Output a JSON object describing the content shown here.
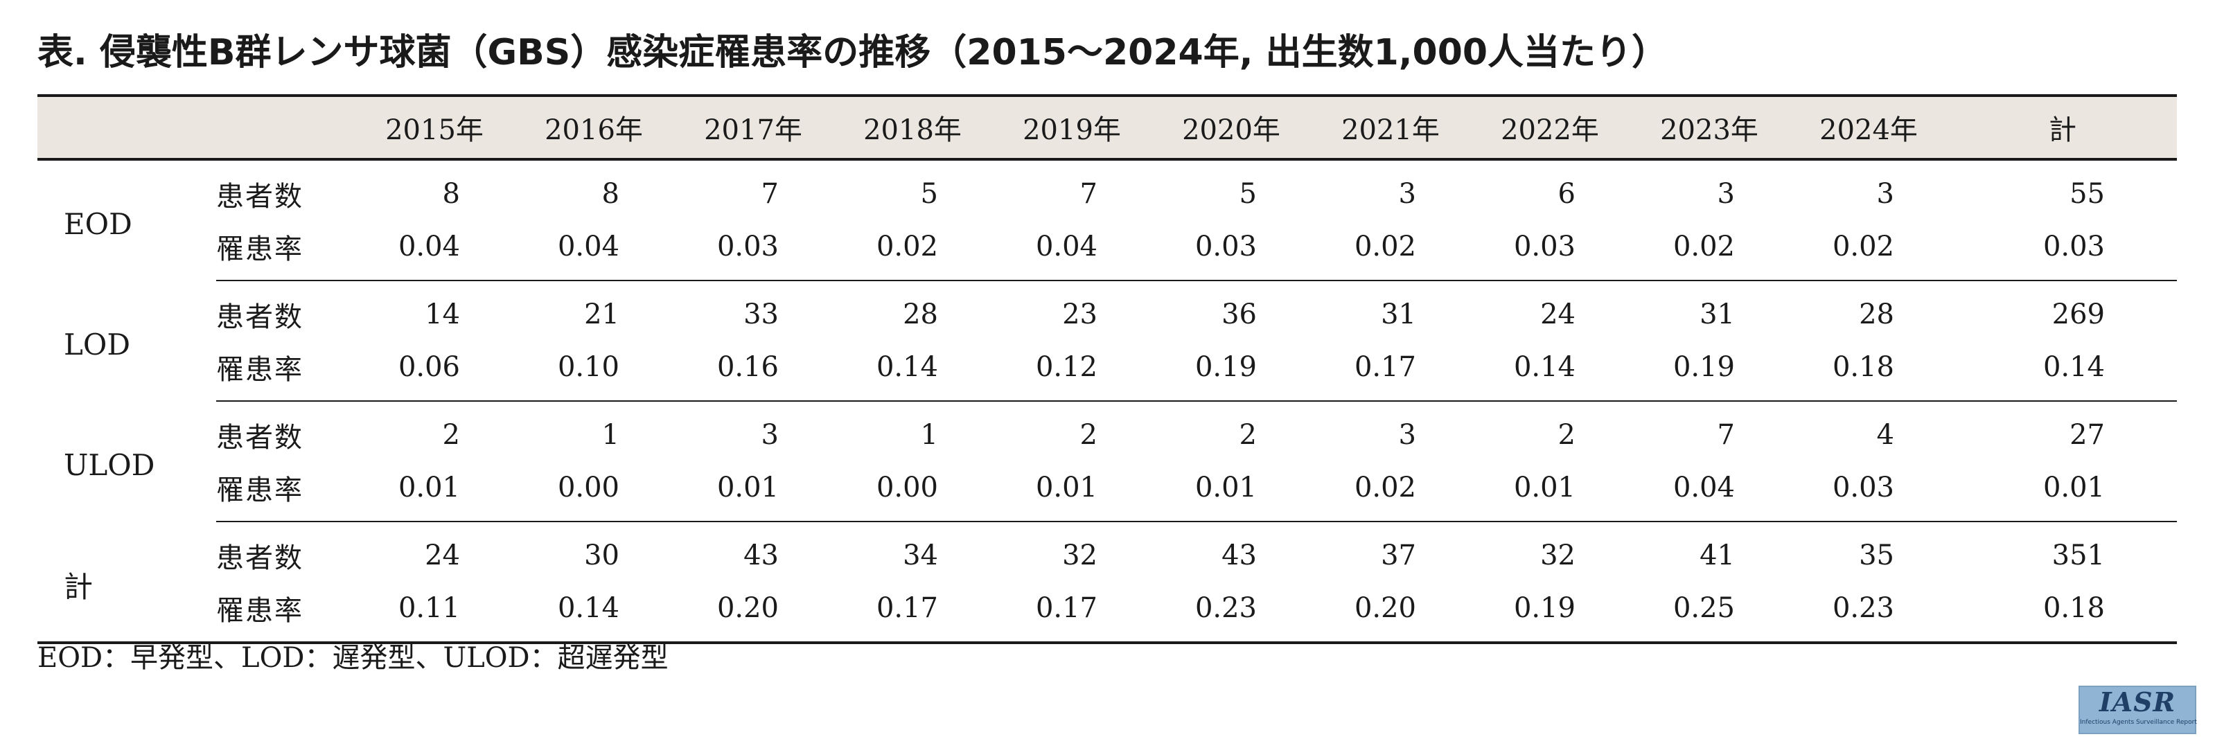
{
  "title": "表. 侵襲性B群レンサ球菌（GBS）感染症罹患率の推移（2015〜2024年, 出生数1,000人当たり）",
  "table": {
    "columns": [
      "2015年",
      "2016年",
      "2017年",
      "2018年",
      "2019年",
      "2020年",
      "2021年",
      "2022年",
      "2023年",
      "2024年",
      "計"
    ],
    "groups": [
      {
        "label": "EOD",
        "rows": [
          {
            "metric": "患者数",
            "values": [
              "8",
              "8",
              "7",
              "5",
              "7",
              "5",
              "3",
              "6",
              "3",
              "3",
              "55"
            ]
          },
          {
            "metric": "罹患率",
            "values": [
              "0.04",
              "0.04",
              "0.03",
              "0.02",
              "0.04",
              "0.03",
              "0.02",
              "0.03",
              "0.02",
              "0.02",
              "0.03"
            ]
          }
        ]
      },
      {
        "label": "LOD",
        "rows": [
          {
            "metric": "患者数",
            "values": [
              "14",
              "21",
              "33",
              "28",
              "23",
              "36",
              "31",
              "24",
              "31",
              "28",
              "269"
            ]
          },
          {
            "metric": "罹患率",
            "values": [
              "0.06",
              "0.10",
              "0.16",
              "0.14",
              "0.12",
              "0.19",
              "0.17",
              "0.14",
              "0.19",
              "0.18",
              "0.14"
            ]
          }
        ]
      },
      {
        "label": "ULOD",
        "rows": [
          {
            "metric": "患者数",
            "values": [
              "2",
              "1",
              "3",
              "1",
              "2",
              "2",
              "3",
              "2",
              "7",
              "4",
              "27"
            ]
          },
          {
            "metric": "罹患率",
            "values": [
              "0.01",
              "0.00",
              "0.01",
              "0.00",
              "0.01",
              "0.01",
              "0.02",
              "0.01",
              "0.04",
              "0.03",
              "0.01"
            ]
          }
        ]
      },
      {
        "label": "計",
        "rows": [
          {
            "metric": "患者数",
            "values": [
              "24",
              "30",
              "43",
              "34",
              "32",
              "43",
              "37",
              "32",
              "41",
              "35",
              "351"
            ]
          },
          {
            "metric": "罹患率",
            "values": [
              "0.11",
              "0.14",
              "0.20",
              "0.17",
              "0.17",
              "0.23",
              "0.20",
              "0.19",
              "0.25",
              "0.23",
              "0.18"
            ]
          }
        ]
      }
    ]
  },
  "footnote": "EOD：早発型、LOD：遅発型、ULOD：超遅発型",
  "logo": {
    "text": "IASR",
    "subtext": "Infectious Agents Surveillance Report",
    "bg_color": "#8fb4d4",
    "text_color": "#1f3f66"
  },
  "colors": {
    "header_bg": "#ebe6df",
    "rule": "#1a1a1a"
  }
}
